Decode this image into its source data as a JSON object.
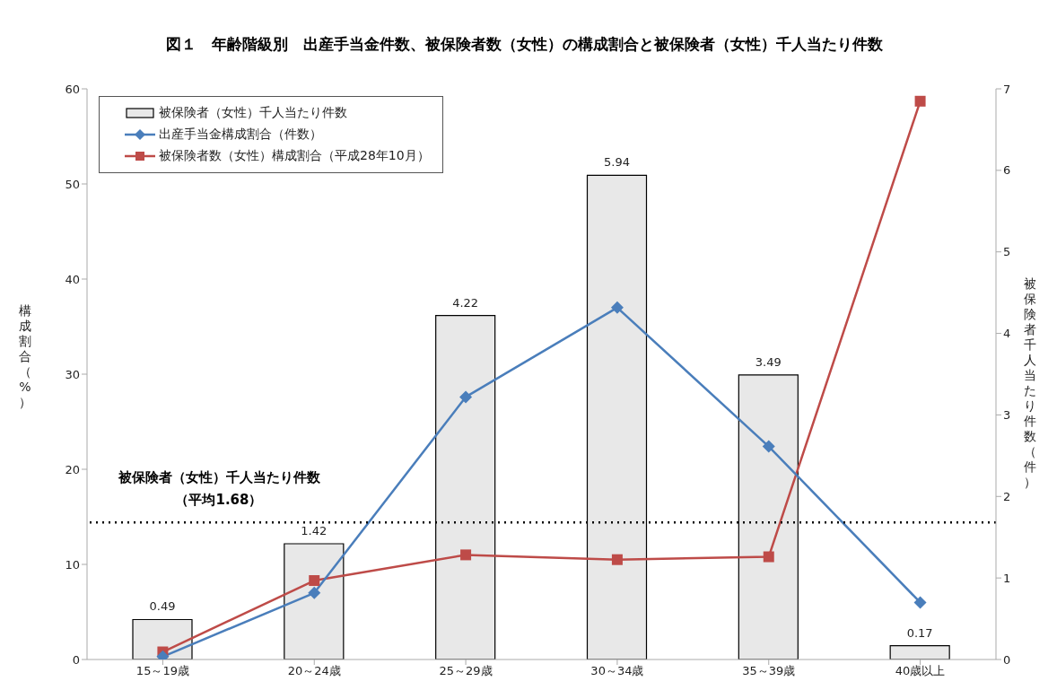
{
  "chart_data": {
    "type": "bar",
    "title": "図１　年齢階級別　出産手当金件数、被保険者数（女性）の構成割合と被保険者（女性）千人当たり件数",
    "ylabel": "構成割合（%）",
    "y2label": "被保険者千人当たり件数（件）",
    "categories": [
      "15～19歳",
      "20～24歳",
      "25～29歳",
      "30～34歳",
      "35～39歳",
      "40歳以上"
    ],
    "series": [
      {
        "name": "被保険者（女性）千人当たり件数",
        "axis": "y2",
        "color": "#e8e8e8",
        "values": [
          0.49,
          1.42,
          4.22,
          5.94,
          3.49,
          0.17
        ],
        "value_labels": [
          "0.49",
          "1.42",
          "4.22",
          "5.94",
          "3.49",
          "0.17"
        ]
      },
      {
        "name": "出産手当金構成割合（件数）",
        "type": "line",
        "color": "#4a7ebb",
        "marker": "diamond",
        "values": [
          0.3,
          7.0,
          27.6,
          37.0,
          22.4,
          6.0
        ]
      },
      {
        "name": "被保険者数（女性）構成割合（平成28年10月）",
        "type": "line",
        "color": "#be4b48",
        "marker": "square",
        "values": [
          0.8,
          8.3,
          11.0,
          10.5,
          10.8,
          58.7
        ]
      }
    ],
    "ylim": [
      0,
      60
    ],
    "yticks": [
      0,
      10,
      20,
      30,
      40,
      50,
      60
    ],
    "y2lim": [
      0,
      7
    ],
    "y2ticks": [
      0,
      1,
      2,
      3,
      4,
      5,
      6,
      7
    ],
    "ref_lines": [
      {
        "axis": "y2",
        "value": 1.68,
        "label": "被保険者（女性）千人当たり件数（平均1.68）",
        "line_style": "dotted",
        "color": "#000000"
      }
    ],
    "legend": "top left",
    "grid": false
  }
}
